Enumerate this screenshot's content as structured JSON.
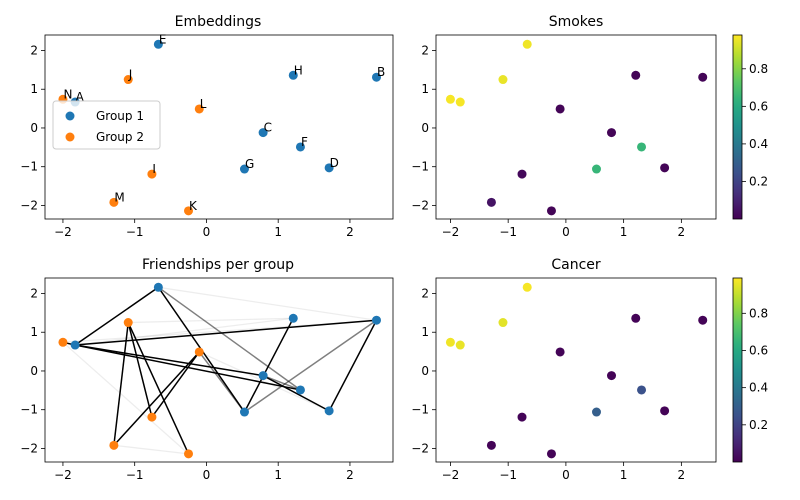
{
  "chart_data": [
    {
      "type": "scatter",
      "title": "Embeddings",
      "xlim": [
        -2.25,
        2.6
      ],
      "ylim": [
        -2.35,
        2.4
      ],
      "xticks": [
        -2,
        -1,
        0,
        1,
        2
      ],
      "yticks": [
        -2,
        -1,
        0,
        1,
        2
      ],
      "legend": {
        "placement": "center-left",
        "entries": [
          "Group 1",
          "Group 2"
        ]
      },
      "series": [
        {
          "name": "Group 1",
          "color": "#1f77b4",
          "ids": [
            "A",
            "B",
            "C",
            "D",
            "E",
            "F",
            "G",
            "H"
          ]
        },
        {
          "name": "Group 2",
          "color": "#ff7f0e",
          "ids": [
            "I",
            "J",
            "K",
            "L",
            "M",
            "N"
          ]
        }
      ]
    },
    {
      "type": "scatter",
      "title": "Smokes",
      "colormap": "viridis",
      "clim": [
        0.0,
        0.98
      ],
      "colorbar_ticks": [
        0.2,
        0.4,
        0.6,
        0.8
      ],
      "colorbar_tick_labels": [
        "0.2",
        "0.4",
        "0.6",
        "0.8"
      ],
      "values": {
        "A": 0.97,
        "B": 0.01,
        "C": 0.01,
        "D": 0.01,
        "E": 0.96,
        "F": 0.65,
        "G": 0.65,
        "H": 0.01,
        "I": 0.02,
        "J": 0.95,
        "K": 0.01,
        "L": 0.01,
        "M": 0.05,
        "N": 0.97
      }
    },
    {
      "type": "network",
      "title": "Friendships per group",
      "edges_dark": [
        [
          "N",
          "A"
        ],
        [
          "A",
          "E"
        ],
        [
          "A",
          "B"
        ],
        [
          "A",
          "F"
        ],
        [
          "A",
          "C"
        ],
        [
          "E",
          "G"
        ],
        [
          "J",
          "M"
        ],
        [
          "J",
          "I"
        ],
        [
          "J",
          "K"
        ],
        [
          "I",
          "L"
        ],
        [
          "M",
          "L"
        ],
        [
          "C",
          "D"
        ],
        [
          "G",
          "H"
        ],
        [
          "B",
          "D"
        ]
      ],
      "edges_mid": [
        [
          "E",
          "F"
        ],
        [
          "L",
          "G"
        ],
        [
          "B",
          "G"
        ],
        [
          "C",
          "F"
        ]
      ],
      "edges_faint": [
        [
          "N",
          "K"
        ],
        [
          "N",
          "B"
        ],
        [
          "E",
          "B"
        ],
        [
          "A",
          "H"
        ],
        [
          "J",
          "H"
        ],
        [
          "L",
          "D"
        ],
        [
          "M",
          "K"
        ]
      ]
    },
    {
      "type": "scatter",
      "title": "Cancer",
      "colormap": "viridis",
      "clim": [
        0.0,
        0.99
      ],
      "colorbar_ticks": [
        0.2,
        0.4,
        0.6,
        0.8
      ],
      "colorbar_tick_labels": [
        "0.2",
        "0.4",
        "0.6",
        "0.8"
      ],
      "values": {
        "A": 0.96,
        "B": 0.01,
        "C": 0.01,
        "D": 0.01,
        "E": 0.98,
        "F": 0.25,
        "G": 0.3,
        "H": 0.01,
        "I": 0.01,
        "J": 0.95,
        "K": 0.01,
        "L": 0.01,
        "M": 0.01,
        "N": 0.97
      }
    }
  ],
  "points": {
    "A": [
      -1.83,
      0.67
    ],
    "B": [
      2.37,
      1.31
    ],
    "C": [
      0.79,
      -0.12
    ],
    "D": [
      1.71,
      -1.03
    ],
    "E": [
      -0.67,
      2.16
    ],
    "F": [
      1.31,
      -0.49
    ],
    "G": [
      0.53,
      -1.06
    ],
    "H": [
      1.21,
      1.36
    ],
    "I": [
      -0.76,
      -1.19
    ],
    "J": [
      -1.09,
      1.25
    ],
    "K": [
      -0.25,
      -2.14
    ],
    "L": [
      -0.1,
      0.49
    ],
    "M": [
      -1.29,
      -1.92
    ],
    "N": [
      -2.0,
      0.74
    ]
  },
  "point_labels": [
    "A",
    "B",
    "C",
    "D",
    "E",
    "F",
    "G",
    "H",
    "I",
    "J",
    "K",
    "L",
    "M",
    "N"
  ],
  "colors": {
    "group1": "#1f77b4",
    "group2": "#ff7f0e"
  }
}
